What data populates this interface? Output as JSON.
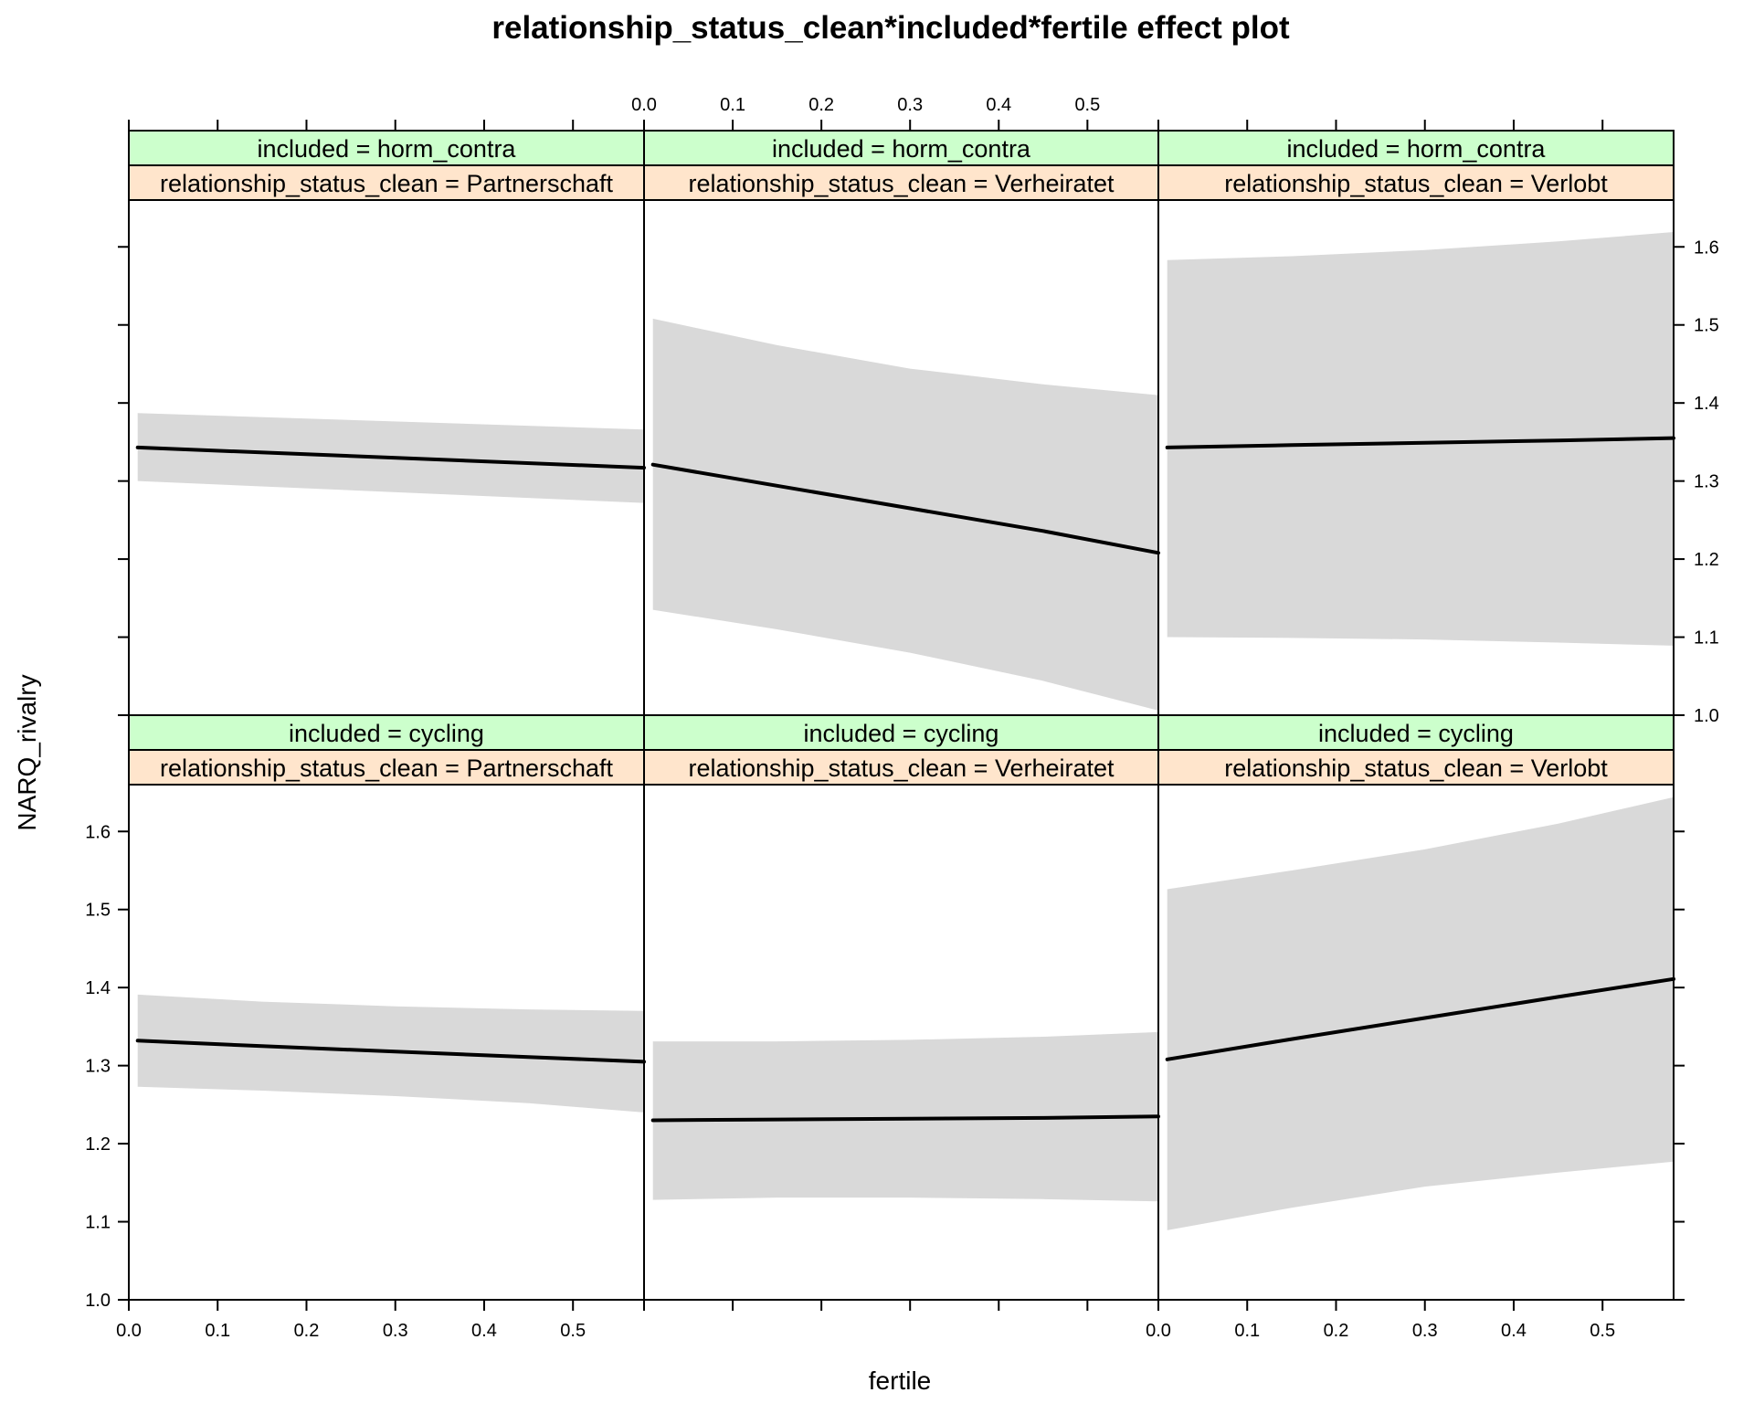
{
  "chart_data": {
    "type": "line",
    "title": "relationship_status_clean*included*fertile effect plot",
    "xlabel": "fertile",
    "ylabel": "NARQ_rivalry",
    "xlim": [
      0.0,
      0.58
    ],
    "ylim": [
      1.0,
      1.66
    ],
    "x_ticks": [
      0.0,
      0.1,
      0.2,
      0.3,
      0.4,
      0.5
    ],
    "x_tick_labels": [
      "0.0",
      "0.1",
      "0.2",
      "0.3",
      "0.4",
      "0.5"
    ],
    "y_ticks": [
      1.0,
      1.1,
      1.2,
      1.3,
      1.4,
      1.5,
      1.6
    ],
    "y_tick_labels": [
      "1.0",
      "1.1",
      "1.2",
      "1.3",
      "1.4",
      "1.5",
      "1.6"
    ],
    "grid": false,
    "band_color": "#d9d9d9",
    "line_color": "#000000",
    "strip_colors": {
      "included": "#ccffcc",
      "relationship_status_clean": "#ffe5cc"
    },
    "panels": [
      {
        "row": "top",
        "col": 0,
        "strip_included": "included = horm_contra",
        "strip_relationship": "relationship_status_clean = Partnerschaft",
        "x": [
          0.01,
          0.58
        ],
        "fit": [
          1.343,
          1.317
        ],
        "lower": [
          1.3,
          1.272
        ],
        "upper": [
          1.387,
          1.366
        ]
      },
      {
        "row": "top",
        "col": 1,
        "strip_included": "included = horm_contra",
        "strip_relationship": "relationship_status_clean = Verheiratet",
        "x": [
          0.01,
          0.15,
          0.3,
          0.45,
          0.58
        ],
        "fit": [
          1.321,
          1.294,
          1.265,
          1.236,
          1.208
        ],
        "lower": [
          1.135,
          1.11,
          1.08,
          1.044,
          1.006
        ],
        "upper": [
          1.508,
          1.474,
          1.444,
          1.424,
          1.41
        ]
      },
      {
        "row": "top",
        "col": 2,
        "strip_included": "included = horm_contra",
        "strip_relationship": "relationship_status_clean = Verlobt",
        "x": [
          0.01,
          0.15,
          0.3,
          0.45,
          0.58
        ],
        "fit": [
          1.343,
          1.346,
          1.349,
          1.352,
          1.355
        ],
        "lower": [
          1.1,
          1.099,
          1.097,
          1.093,
          1.089
        ],
        "upper": [
          1.583,
          1.588,
          1.596,
          1.607,
          1.619
        ]
      },
      {
        "row": "bottom",
        "col": 0,
        "strip_included": "included = cycling",
        "strip_relationship": "relationship_status_clean = Partnerschaft",
        "x": [
          0.01,
          0.15,
          0.3,
          0.45,
          0.58
        ],
        "fit": [
          1.332,
          1.325,
          1.318,
          1.311,
          1.305
        ],
        "lower": [
          1.273,
          1.268,
          1.261,
          1.252,
          1.24
        ],
        "upper": [
          1.391,
          1.382,
          1.376,
          1.372,
          1.37
        ]
      },
      {
        "row": "bottom",
        "col": 1,
        "strip_included": "included = cycling",
        "strip_relationship": "relationship_status_clean = Verheiratet",
        "x": [
          0.01,
          0.15,
          0.3,
          0.45,
          0.58
        ],
        "fit": [
          1.23,
          1.231,
          1.232,
          1.233,
          1.235
        ],
        "lower": [
          1.128,
          1.131,
          1.131,
          1.129,
          1.126
        ],
        "upper": [
          1.331,
          1.331,
          1.333,
          1.337,
          1.343
        ]
      },
      {
        "row": "bottom",
        "col": 2,
        "strip_included": "included = cycling",
        "strip_relationship": "relationship_status_clean = Verlobt",
        "x": [
          0.01,
          0.15,
          0.3,
          0.45,
          0.58
        ],
        "fit": [
          1.308,
          1.334,
          1.361,
          1.388,
          1.411
        ],
        "lower": [
          1.089,
          1.118,
          1.145,
          1.163,
          1.177
        ],
        "upper": [
          1.526,
          1.55,
          1.577,
          1.61,
          1.644
        ]
      }
    ]
  }
}
